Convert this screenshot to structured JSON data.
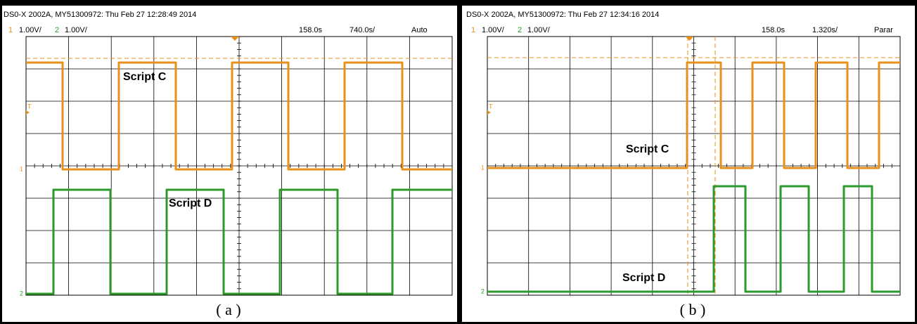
{
  "panels": [
    {
      "header": "DS0-X 2002A, MY51300972: Thu Feb 27 12:28:49 2014",
      "ch1_num": "1",
      "ch1_scale": "1.00V/",
      "ch2_num": "2",
      "ch2_scale": "1.00V/",
      "delay": "158.0s",
      "timebase": "740.0s/",
      "mode": "Auto",
      "trigger_marker": "T",
      "label_c": "Script C",
      "label_d": "Script D",
      "caption": "( a )"
    },
    {
      "header": "DS0-X 2002A, MY51300972: Thu Feb 27 12:34:16 2014",
      "ch1_num": "1",
      "ch1_scale": "1.00V/",
      "ch2_num": "2",
      "ch2_scale": "1.00V/",
      "delay": "158.0s",
      "timebase": "1.320s/",
      "mode": "Parar",
      "trigger_marker": "T",
      "label_c": "Script C",
      "label_d": "Script D",
      "caption": "( b )"
    }
  ]
}
